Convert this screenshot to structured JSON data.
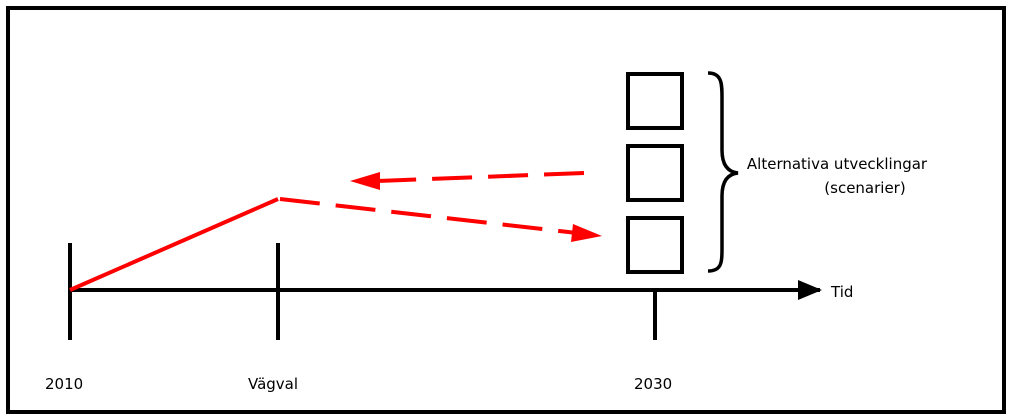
{
  "diagram": {
    "labels": {
      "start_year": "2010",
      "choice_point": "Vägval",
      "end_year": "2030",
      "time_axis": "Tid",
      "scenarios_line1": "Alternativa utvecklingar",
      "scenarios_line2": "(scenarier)"
    },
    "scenario_box_count": 3,
    "colors": {
      "frame": "#000000",
      "axis": "#000000",
      "path": "#ff0000",
      "background": "#ffffff"
    }
  }
}
